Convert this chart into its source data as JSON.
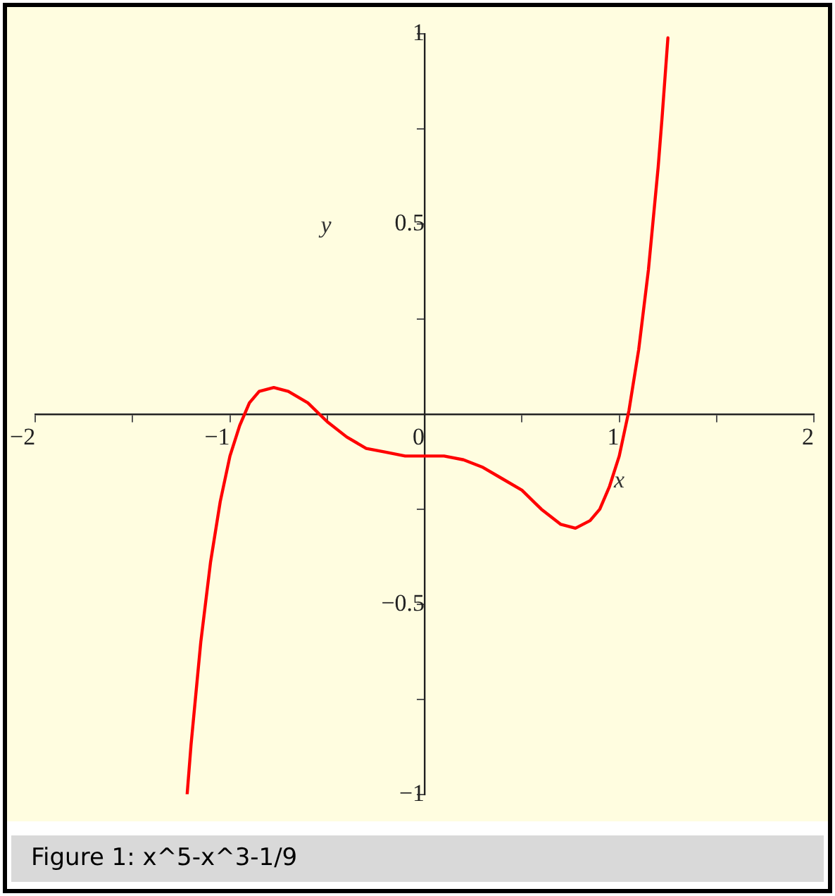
{
  "chart_data": {
    "type": "line",
    "xlabel": "x",
    "ylabel": "y",
    "annotations": [
      "Figure 1: x^5-x^3-1/9"
    ],
    "x": [
      -1.22,
      -1.2,
      -1.15,
      -1.1,
      -1.05,
      -1,
      -0.95,
      -0.9,
      -0.85,
      -0.775,
      -0.7,
      -0.6,
      -0.5,
      -0.4,
      -0.3,
      -0.2,
      -0.1,
      0,
      0.1,
      0.2,
      0.3,
      0.4,
      0.5,
      0.6,
      0.7,
      0.775,
      0.85,
      0.9,
      0.95,
      1,
      1.05,
      1.1,
      1.15,
      1.2,
      1.22,
      1.25
    ],
    "series": [
      {
        "color": "#ff0000",
        "values": [
          -1.0,
          -0.87,
          -0.6,
          -0.39,
          -0.23,
          -0.11,
          -0.03,
          0.03,
          0.06,
          0.07,
          0.06,
          0.03,
          -0.02,
          -0.06,
          -0.09,
          -0.1,
          -0.11,
          -0.11,
          -0.11,
          -0.12,
          -0.14,
          -0.17,
          -0.2,
          -0.25,
          -0.29,
          -0.3,
          -0.28,
          -0.25,
          -0.19,
          -0.11,
          0.01,
          0.17,
          0.38,
          0.65,
          0.78,
          0.99
        ]
      }
    ],
    "xlim": [
      -2,
      2
    ],
    "ylim": [
      -1,
      1
    ],
    "xticks": [
      -2,
      {
        "value": -1.5,
        "label": null
      },
      -1,
      {
        "value": -0.5,
        "label": null
      },
      0,
      {
        "value": 0.5,
        "label": null
      },
      1,
      {
        "value": 1.5,
        "label": null
      },
      2
    ],
    "yticks": [
      -1,
      {
        "value": -0.75,
        "label": null
      },
      -0.5,
      {
        "value": -0.25,
        "label": null
      },
      {
        "value": 0.25,
        "label": null
      },
      0.5,
      {
        "value": 0.75,
        "label": null
      },
      1
    ],
    "grid": false,
    "legend": false,
    "marker": "none",
    "line_style": "solid"
  }
}
